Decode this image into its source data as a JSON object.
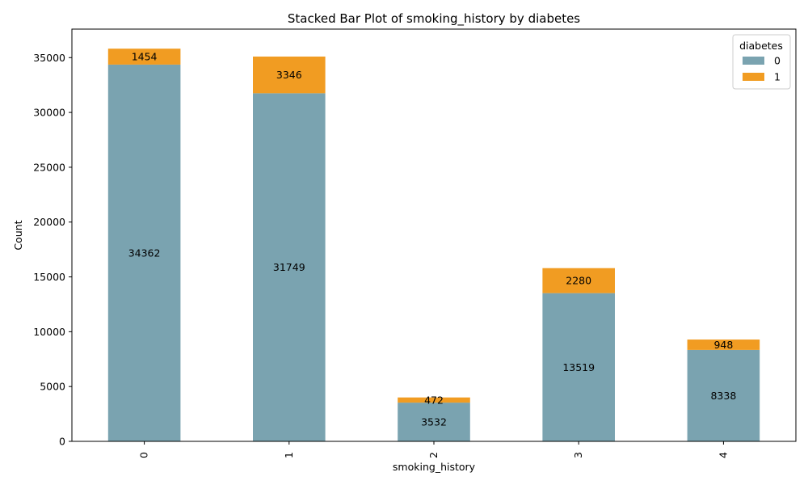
{
  "chart_data": {
    "type": "bar",
    "stacked": true,
    "title": "Stacked Bar Plot of smoking_history by diabetes",
    "xlabel": "smoking_history",
    "ylabel": "Count",
    "categories": [
      "0",
      "1",
      "2",
      "3",
      "4"
    ],
    "series": [
      {
        "name": "0",
        "color": "#7aa3b0",
        "values": [
          34362,
          31749,
          3532,
          13519,
          8338
        ]
      },
      {
        "name": "1",
        "color": "#f19c22",
        "values": [
          1454,
          3346,
          472,
          2280,
          948
        ]
      }
    ],
    "ylim": [
      0,
      37600
    ],
    "yticks": [
      0,
      5000,
      10000,
      15000,
      20000,
      25000,
      30000,
      35000
    ],
    "legend": {
      "title": "diabetes",
      "position": "top-right"
    },
    "grid": false
  }
}
